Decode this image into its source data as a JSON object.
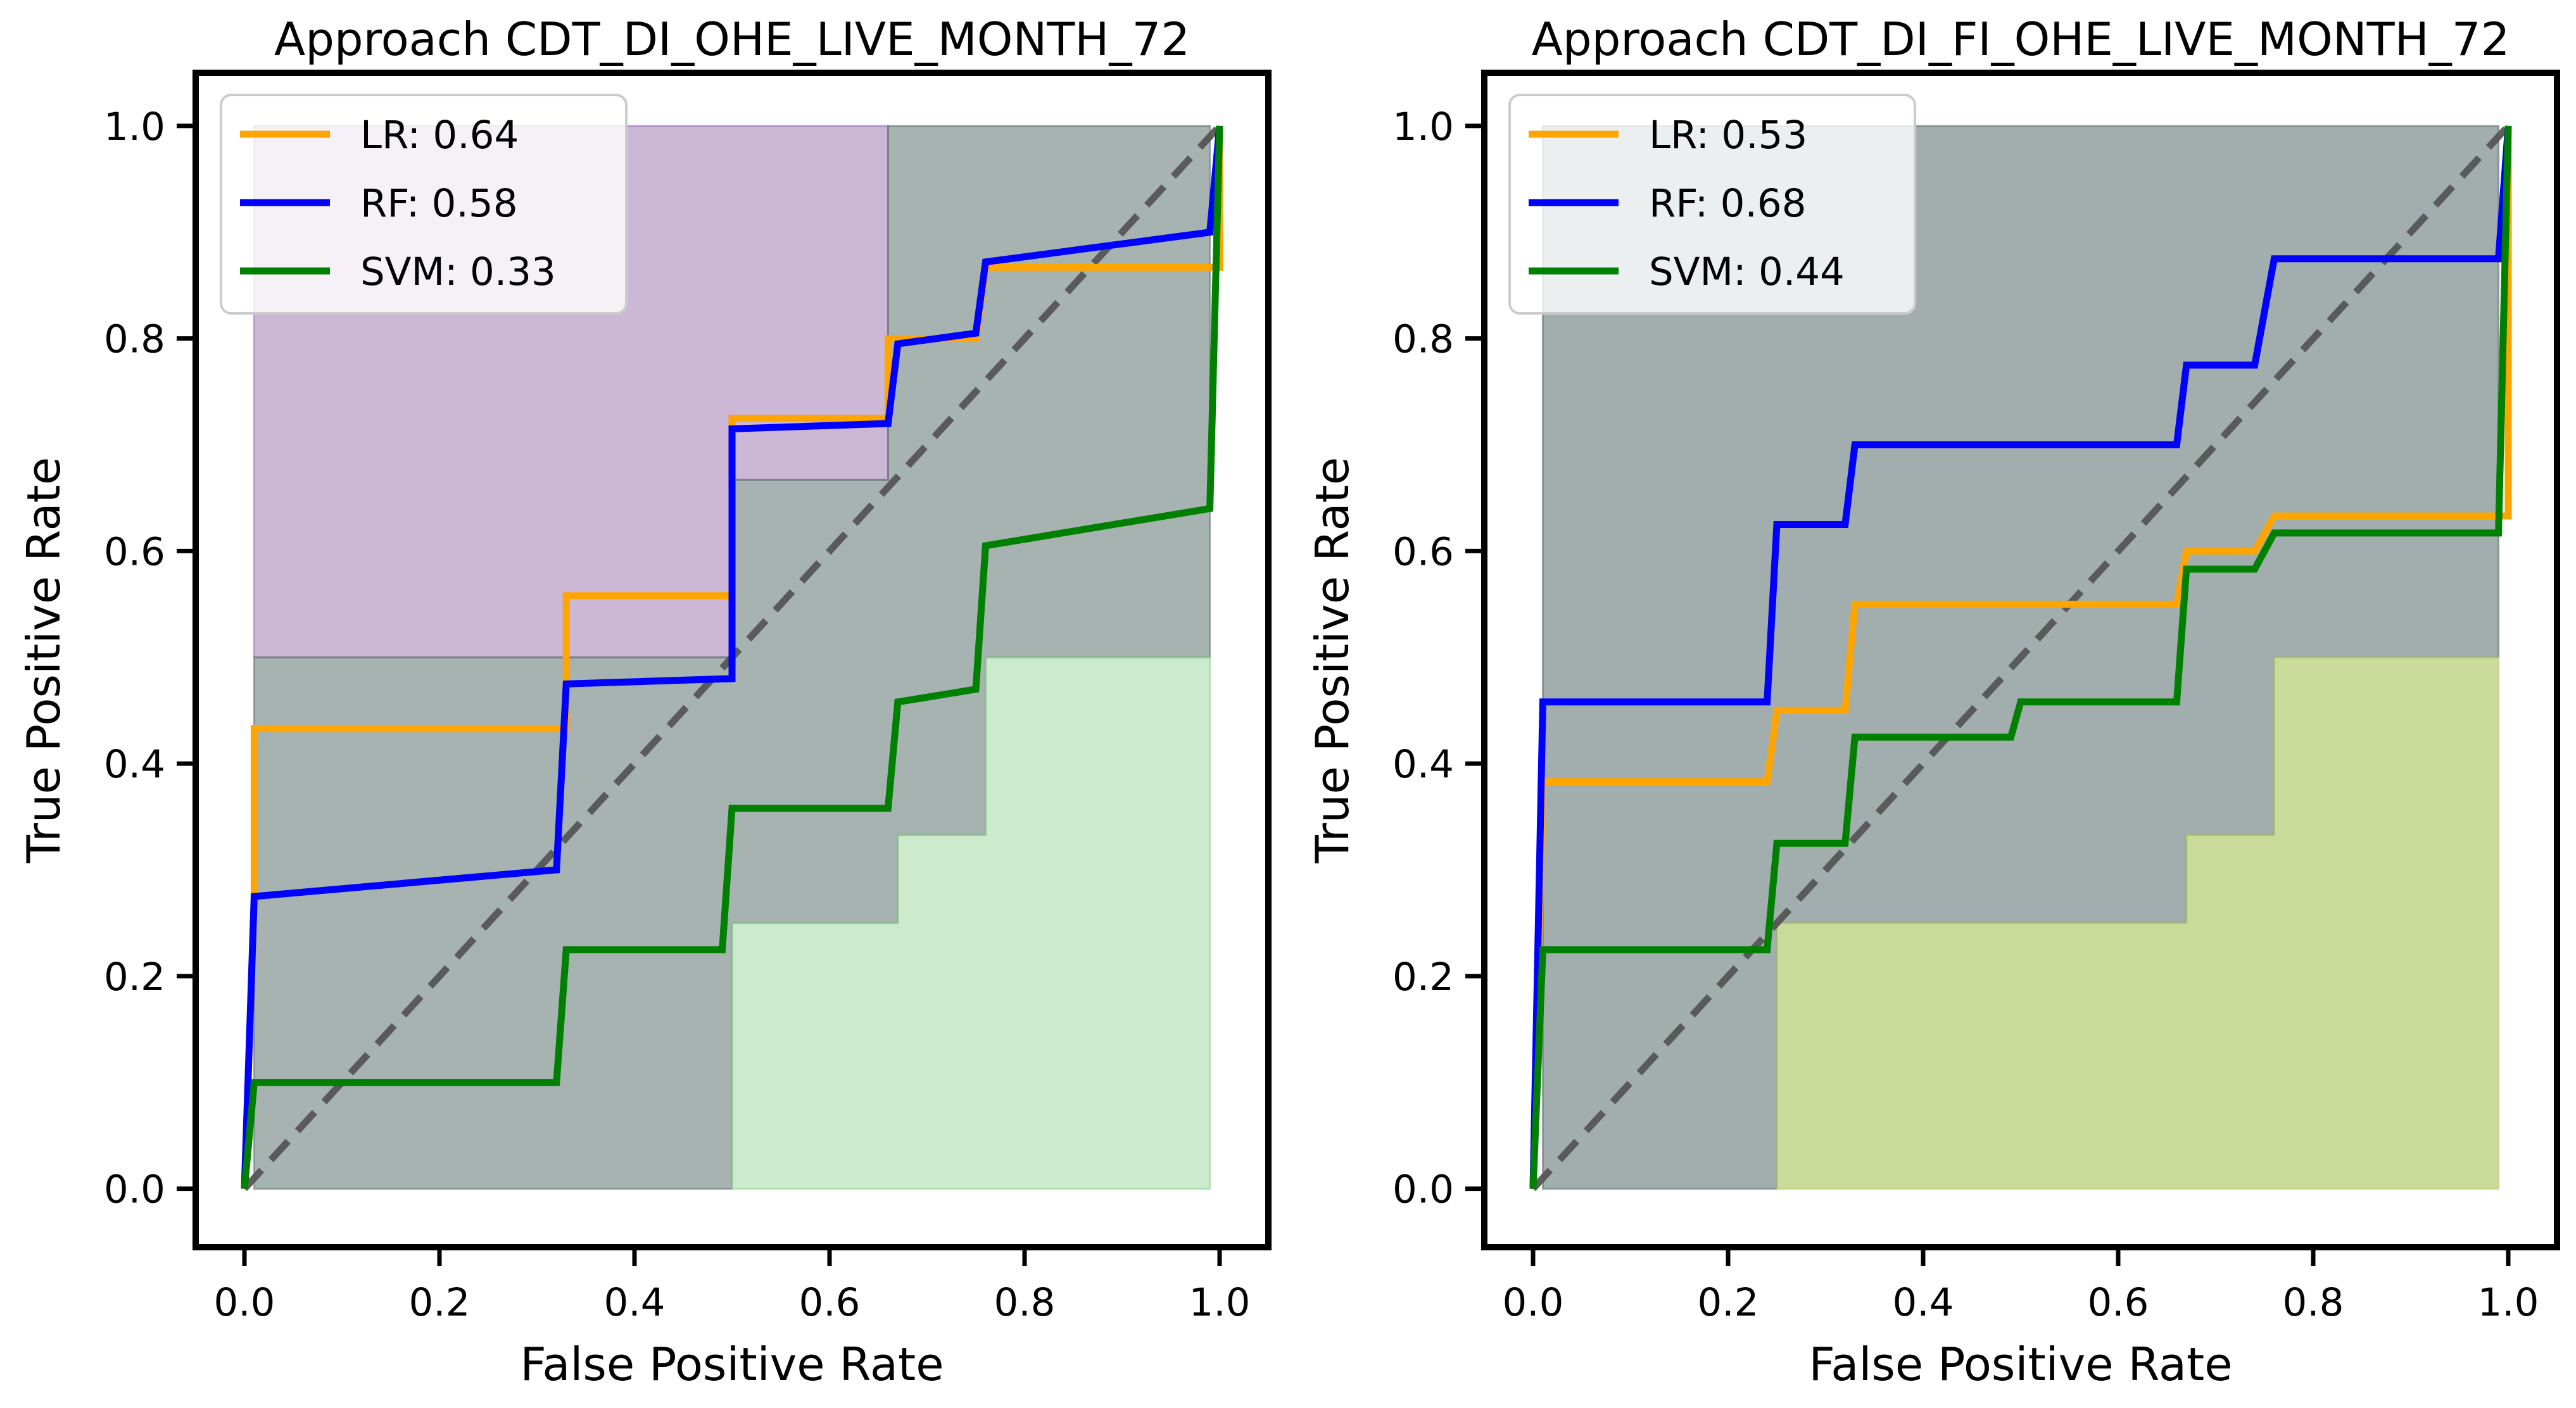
{
  "colors": {
    "lr": "#ffa500",
    "rf": "#0000ff",
    "svm": "#008000",
    "diagonal": "#555555",
    "band_purple": "#9a6fad",
    "band_gray": "#5f7471",
    "band_green": "#8fd38f",
    "band_olive": "#b5cc6e"
  },
  "chart_data": [
    {
      "type": "line",
      "title": "Approach CDT_DI_OHE_LIVE_MONTH_72",
      "xlabel": "False Positive Rate",
      "ylabel": "True Positive Rate",
      "xlim": [
        -0.05,
        1.05
      ],
      "ylim": [
        -0.055,
        1.05
      ],
      "xticks": [
        "0.0",
        "0.2",
        "0.4",
        "0.6",
        "0.8",
        "1.0"
      ],
      "yticks": [
        "0.0",
        "0.2",
        "0.4",
        "0.6",
        "0.8",
        "1.0"
      ],
      "legend_position": "upper-left",
      "series": [
        {
          "name": "LR: 0.64",
          "color_key": "lr",
          "x": [
            0,
            0.01,
            0.01,
            0.33,
            0.33,
            0.5,
            0.5,
            0.66,
            0.66,
            0.75,
            0.76,
            1.0,
            1.0
          ],
          "y": [
            0,
            0.27,
            0.433,
            0.433,
            0.558,
            0.558,
            0.725,
            0.725,
            0.8,
            0.8,
            0.867,
            0.867,
            1.0
          ]
        },
        {
          "name": "RF: 0.58",
          "color_key": "rf",
          "x": [
            0,
            0.01,
            0.32,
            0.33,
            0.5,
            0.5,
            0.66,
            0.67,
            0.75,
            0.76,
            0.99,
            1.0
          ],
          "y": [
            0,
            0.275,
            0.3,
            0.475,
            0.48,
            0.715,
            0.72,
            0.795,
            0.805,
            0.872,
            0.9,
            1.0
          ]
        },
        {
          "name": "SVM: 0.33",
          "color_key": "svm",
          "x": [
            0,
            0.01,
            0.32,
            0.33,
            0.49,
            0.5,
            0.66,
            0.67,
            0.75,
            0.76,
            0.99,
            1.0
          ],
          "y": [
            0,
            0.1,
            0.1,
            0.225,
            0.225,
            0.358,
            0.358,
            0.458,
            0.47,
            0.605,
            0.64,
            1.0
          ]
        }
      ],
      "bands": [
        {
          "color_key": "band_purple",
          "opacity": 0.5,
          "upper": [
            [
              0.01,
              1.0
            ],
            [
              0.66,
              1.0
            ]
          ],
          "lower": [
            [
              0.66,
              0.667
            ],
            [
              0.5,
              0.667
            ],
            [
              0.5,
              0.5
            ],
            [
              0.01,
              0.5
            ]
          ]
        },
        {
          "color_key": "band_gray",
          "opacity": 0.55,
          "upper": [
            [
              0.01,
              0.5
            ],
            [
              0.5,
              0.5
            ],
            [
              0.5,
              0.667
            ],
            [
              0.66,
              0.667
            ],
            [
              0.66,
              1.0
            ],
            [
              0.99,
              1.0
            ]
          ],
          "lower": [
            [
              0.99,
              0.5
            ],
            [
              0.76,
              0.5
            ],
            [
              0.76,
              0.333
            ],
            [
              0.67,
              0.333
            ],
            [
              0.67,
              0.25
            ],
            [
              0.5,
              0.25
            ],
            [
              0.5,
              0.0
            ],
            [
              0.01,
              0.0
            ]
          ]
        },
        {
          "color_key": "band_green",
          "opacity": 0.45,
          "upper": [
            [
              0.5,
              0.25
            ],
            [
              0.67,
              0.25
            ],
            [
              0.67,
              0.333
            ],
            [
              0.76,
              0.333
            ],
            [
              0.76,
              0.5
            ],
            [
              0.99,
              0.5
            ]
          ],
          "lower": [
            [
              0.99,
              0.0
            ],
            [
              0.5,
              0.0
            ]
          ]
        }
      ]
    },
    {
      "type": "line",
      "title": "Approach CDT_DI_FI_OHE_LIVE_MONTH_72",
      "xlabel": "False Positive Rate",
      "ylabel": "True Positive Rate",
      "xlim": [
        -0.05,
        1.05
      ],
      "ylim": [
        -0.055,
        1.05
      ],
      "xticks": [
        "0.0",
        "0.2",
        "0.4",
        "0.6",
        "0.8",
        "1.0"
      ],
      "yticks": [
        "0.0",
        "0.2",
        "0.4",
        "0.6",
        "0.8",
        "1.0"
      ],
      "legend_position": "upper-left",
      "series": [
        {
          "name": "LR: 0.53",
          "color_key": "lr",
          "x": [
            0,
            0.01,
            0.24,
            0.25,
            0.32,
            0.33,
            0.66,
            0.67,
            0.74,
            0.76,
            1.0,
            1.0
          ],
          "y": [
            0,
            0.383,
            0.383,
            0.45,
            0.45,
            0.55,
            0.55,
            0.6,
            0.6,
            0.633,
            0.633,
            1.0
          ]
        },
        {
          "name": "RF: 0.68",
          "color_key": "rf",
          "x": [
            0,
            0.01,
            0.24,
            0.25,
            0.32,
            0.33,
            0.66,
            0.67,
            0.74,
            0.76,
            0.99,
            1.0
          ],
          "y": [
            0,
            0.458,
            0.458,
            0.625,
            0.625,
            0.7,
            0.7,
            0.775,
            0.775,
            0.875,
            0.875,
            1.0
          ]
        },
        {
          "name": "SVM: 0.44",
          "color_key": "svm",
          "x": [
            0,
            0.01,
            0.24,
            0.25,
            0.32,
            0.33,
            0.49,
            0.5,
            0.66,
            0.67,
            0.74,
            0.76,
            0.99,
            1.0
          ],
          "y": [
            0,
            0.225,
            0.225,
            0.325,
            0.325,
            0.425,
            0.425,
            0.458,
            0.458,
            0.583,
            0.583,
            0.617,
            0.617,
            1.0
          ]
        }
      ],
      "bands": [
        {
          "color_key": "band_gray",
          "opacity": 0.58,
          "upper": [
            [
              0.01,
              1.0
            ],
            [
              0.99,
              1.0
            ]
          ],
          "lower": [
            [
              0.99,
              0.5
            ],
            [
              0.76,
              0.5
            ],
            [
              0.76,
              0.333
            ],
            [
              0.67,
              0.333
            ],
            [
              0.67,
              0.25
            ],
            [
              0.25,
              0.25
            ],
            [
              0.25,
              0.0
            ],
            [
              0.01,
              0.0
            ]
          ]
        },
        {
          "color_key": "band_olive",
          "opacity": 0.7,
          "upper": [
            [
              0.25,
              0.25
            ],
            [
              0.67,
              0.25
            ],
            [
              0.67,
              0.333
            ],
            [
              0.76,
              0.333
            ],
            [
              0.76,
              0.5
            ],
            [
              0.99,
              0.5
            ]
          ],
          "lower": [
            [
              0.99,
              0.0
            ],
            [
              0.25,
              0.0
            ]
          ]
        }
      ]
    }
  ]
}
